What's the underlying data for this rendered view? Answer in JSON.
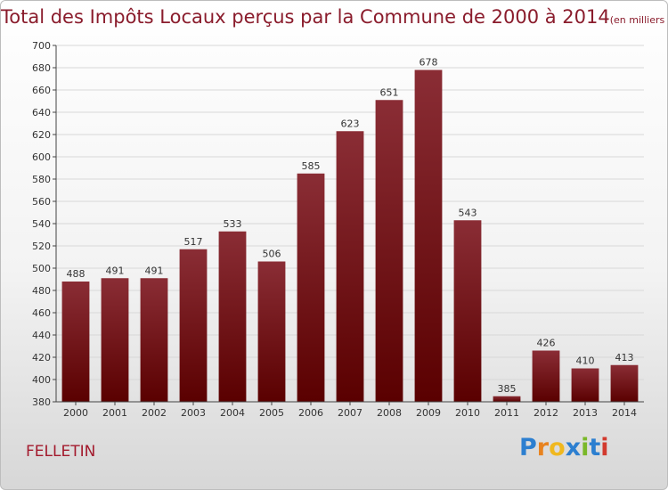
{
  "title": "Total des Impôts Locaux perçus par la Commune de 2000 à 2014",
  "title_unit": "(en milliers d'€)",
  "commune": "FELLETIN",
  "logo": {
    "text": "Proxiti",
    "letter_colors": [
      "#2c7fd0",
      "#e8831f",
      "#f0b81f",
      "#2c7fd0",
      "#7ab829",
      "#2c7fd0",
      "#d23a2e"
    ]
  },
  "colors": {
    "bar_top": "#8a2d35",
    "bar_bottom": "#5a0000",
    "title": "#8a1c2c",
    "grid": "#d8d8d8"
  },
  "chart_data": {
    "type": "bar",
    "categories": [
      "2000",
      "2001",
      "2002",
      "2003",
      "2004",
      "2005",
      "2006",
      "2007",
      "2008",
      "2009",
      "2010",
      "2011",
      "2012",
      "2013",
      "2014"
    ],
    "values": [
      488,
      491,
      491,
      517,
      533,
      506,
      585,
      623,
      651,
      678,
      543,
      385,
      426,
      410,
      413
    ],
    "data_labels": [
      "488",
      "491",
      "491",
      "517",
      "533",
      "506",
      "585",
      "623",
      "651",
      "678",
      "543",
      "385",
      "426",
      "410",
      "413"
    ],
    "yticks": [
      380,
      400,
      420,
      440,
      460,
      480,
      500,
      520,
      540,
      560,
      580,
      600,
      620,
      640,
      660,
      680,
      700
    ],
    "ylim": [
      380,
      700
    ],
    "grid": true,
    "xlabel": "",
    "ylabel": ""
  }
}
